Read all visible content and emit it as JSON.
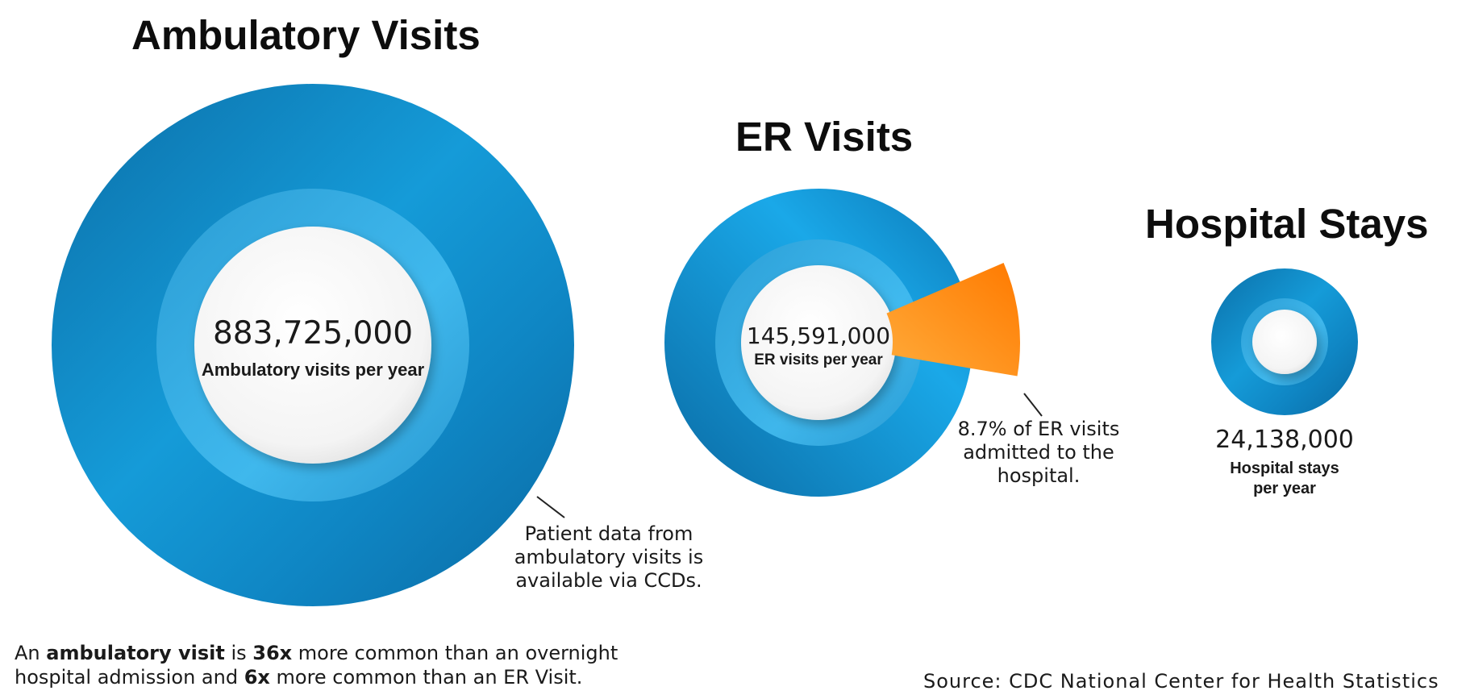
{
  "chart_data": {
    "type": "bubble",
    "title": "",
    "series": [
      {
        "name": "Ambulatory Visits",
        "value": 883725000,
        "value_label": "883,725,000",
        "label": "Ambulatory visits per year",
        "annotation": "Patient data from ambulatory visits is available via CCDs."
      },
      {
        "name": "ER Visits",
        "value": 145591000,
        "value_label": "145,591,000",
        "label": "ER visits per year",
        "highlight_percent": 8.7,
        "annotation": "8.7% of ER visits admitted to the hospital."
      },
      {
        "name": "Hospital Stays",
        "value": 24138000,
        "value_label": "24,138,000",
        "label": "Hospital stays per year"
      }
    ],
    "footnote": {
      "part1": "An ",
      "bold1": "ambulatory visit",
      "part2": " is ",
      "bold2": "36x",
      "part3": " more common than an overnight hospital admission and ",
      "bold3": "6x",
      "part4": " more common than an ER Visit."
    },
    "source": "Source: CDC National Center for Health Statistics"
  },
  "colors": {
    "ring_light": "#1ea6e6",
    "ring_dark": "#0a6aa3",
    "inner_ring": "#3fb4e8",
    "wedge_light": "#ffa227",
    "wedge_dark": "#ff7a00"
  }
}
